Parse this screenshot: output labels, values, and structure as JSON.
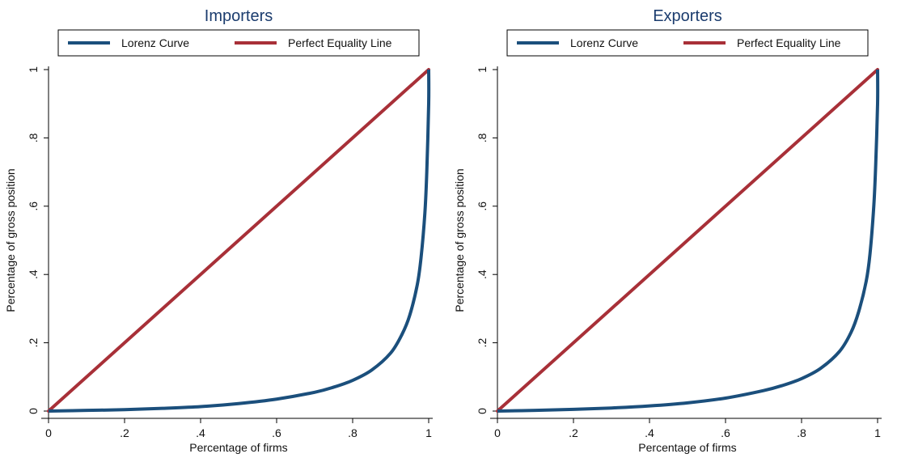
{
  "colors": {
    "lorenz": "#1b4f7c",
    "equality": "#a83038",
    "title": "#1b3c6e",
    "axis": "#000000"
  },
  "chart_data": [
    {
      "type": "line",
      "title": "Importers",
      "xlabel": "Percentage of firms",
      "ylabel": "Percentage of gross position",
      "xlim": [
        0,
        1
      ],
      "ylim": [
        0,
        1
      ],
      "x_ticks": [
        "0",
        ".2",
        ".4",
        ".6",
        ".8",
        "1"
      ],
      "y_ticks": [
        "0",
        ".2",
        ".4",
        ".6",
        ".8",
        "1"
      ],
      "grid": false,
      "legend": "top",
      "series": [
        {
          "name": "Lorenz Curve",
          "x": [
            0,
            0.1,
            0.2,
            0.3,
            0.4,
            0.5,
            0.6,
            0.7,
            0.75,
            0.8,
            0.85,
            0.9,
            0.93,
            0.95,
            0.97,
            0.98,
            0.99,
            0.995,
            1.0,
            1.0
          ],
          "y": [
            0,
            0.002,
            0.004,
            0.008,
            0.013,
            0.022,
            0.035,
            0.055,
            0.07,
            0.09,
            0.12,
            0.17,
            0.225,
            0.28,
            0.37,
            0.45,
            0.58,
            0.7,
            0.9,
            1.0
          ]
        },
        {
          "name": "Perfect Equality Line",
          "x": [
            0,
            1
          ],
          "y": [
            0,
            1
          ]
        }
      ]
    },
    {
      "type": "line",
      "title": "Exporters",
      "xlabel": "Percentage of firms",
      "ylabel": "Percentage of gross position",
      "xlim": [
        0,
        1
      ],
      "ylim": [
        0,
        1
      ],
      "x_ticks": [
        "0",
        ".2",
        ".4",
        ".6",
        ".8",
        "1"
      ],
      "y_ticks": [
        "0",
        ".2",
        ".4",
        ".6",
        ".8",
        "1"
      ],
      "grid": false,
      "legend": "top",
      "series": [
        {
          "name": "Lorenz Curve",
          "x": [
            0,
            0.1,
            0.2,
            0.3,
            0.4,
            0.5,
            0.6,
            0.7,
            0.75,
            0.8,
            0.85,
            0.9,
            0.93,
            0.95,
            0.97,
            0.98,
            0.99,
            0.995,
            1.0,
            1.0
          ],
          "y": [
            0,
            0.002,
            0.005,
            0.009,
            0.015,
            0.024,
            0.038,
            0.06,
            0.075,
            0.095,
            0.125,
            0.175,
            0.23,
            0.29,
            0.38,
            0.46,
            0.6,
            0.72,
            0.9,
            1.0
          ]
        },
        {
          "name": "Perfect Equality Line",
          "x": [
            0,
            1
          ],
          "y": [
            0,
            1
          ]
        }
      ]
    }
  ]
}
